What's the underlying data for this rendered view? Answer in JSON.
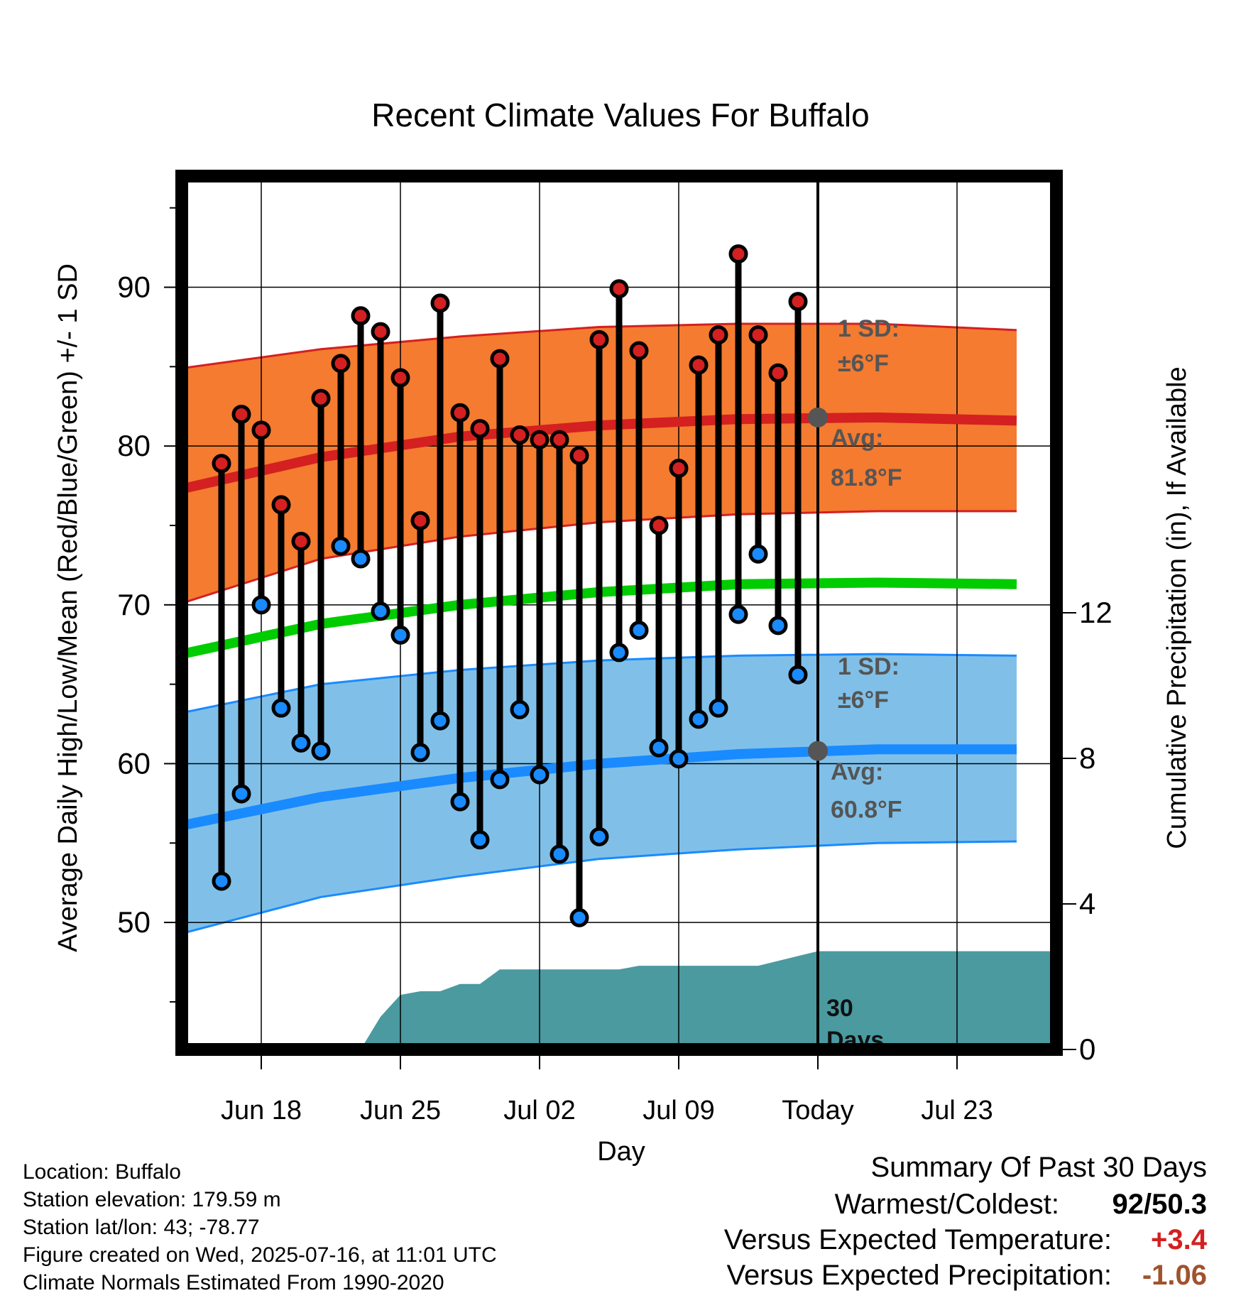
{
  "chart_data": {
    "type": "line",
    "title": "Recent Climate Values For Buffalo",
    "xlabel": "Day",
    "ylabel": "Average Daily High/Low/Mean (Red/Blue/Green) +/- 1 SD",
    "y2label": "Cumulative Precipitation (in), If Available",
    "xlim": [
      "2025-06-14",
      "2025-07-28"
    ],
    "ylim": [
      42,
      97
    ],
    "y2lim": [
      0,
      24
    ],
    "x_ticks": [
      {
        "date": "2025-06-18",
        "label": "Jun 18"
      },
      {
        "date": "2025-06-25",
        "label": "Jun 25"
      },
      {
        "date": "2025-07-02",
        "label": "Jul 02"
      },
      {
        "date": "2025-07-09",
        "label": "Jul 09"
      },
      {
        "date": "2025-07-16",
        "label": "Today"
      },
      {
        "date": "2025-07-23",
        "label": "Jul 23"
      }
    ],
    "y_ticks": [
      50,
      60,
      70,
      80,
      90
    ],
    "y2_ticks": [
      0,
      4,
      8,
      12
    ],
    "today": "2025-07-16",
    "observed": {
      "dates": [
        "2025-06-16",
        "2025-06-17",
        "2025-06-18",
        "2025-06-19",
        "2025-06-20",
        "2025-06-21",
        "2025-06-22",
        "2025-06-23",
        "2025-06-24",
        "2025-06-25",
        "2025-06-26",
        "2025-06-27",
        "2025-06-28",
        "2025-06-29",
        "2025-06-30",
        "2025-07-01",
        "2025-07-02",
        "2025-07-03",
        "2025-07-04",
        "2025-07-05",
        "2025-07-06",
        "2025-07-07",
        "2025-07-08",
        "2025-07-09",
        "2025-07-10",
        "2025-07-11",
        "2025-07-12",
        "2025-07-13",
        "2025-07-14",
        "2025-07-15"
      ],
      "highs": [
        78.9,
        82,
        81,
        76.3,
        74,
        83,
        85.2,
        88.2,
        87.2,
        84.3,
        75.3,
        89,
        82.1,
        81.1,
        85.5,
        80.7,
        80.4,
        80.4,
        79.4,
        86.7,
        89.9,
        86,
        75,
        78.6,
        85.1,
        87,
        92.1,
        87,
        84.6,
        89.1
      ],
      "lows": [
        52.6,
        58.1,
        70,
        63.5,
        61.3,
        60.8,
        73.7,
        72.9,
        69.6,
        68.1,
        60.7,
        62.7,
        57.6,
        55.2,
        59,
        63.4,
        59.3,
        54.3,
        50.3,
        55.4,
        67,
        68.4,
        61,
        60.3,
        62.8,
        63.5,
        69.4,
        73.2,
        68.7,
        65.6
      ]
    },
    "normals": {
      "dates": [
        "2025-06-14",
        "2025-06-21",
        "2025-06-28",
        "2025-07-05",
        "2025-07-12",
        "2025-07-19",
        "2025-07-26"
      ],
      "avg_high": [
        77.3,
        79.3,
        80.6,
        81.3,
        81.7,
        81.8,
        81.6
      ],
      "high_upper": [
        84.9,
        86.1,
        86.9,
        87.5,
        87.7,
        87.7,
        87.3
      ],
      "high_lower": [
        70.1,
        72.9,
        74.3,
        75.2,
        75.7,
        75.9,
        75.9
      ],
      "avg_mean": [
        66.9,
        68.8,
        70.0,
        70.8,
        71.3,
        71.4,
        71.3
      ],
      "avg_low": [
        56.1,
        57.9,
        59.1,
        60.0,
        60.6,
        60.9,
        60.9
      ],
      "low_upper": [
        63.2,
        65.0,
        65.9,
        66.5,
        66.8,
        66.9,
        66.8
      ],
      "low_lower": [
        49.3,
        51.6,
        52.9,
        54.0,
        54.6,
        55.0,
        55.1
      ]
    },
    "precip_cumulative": {
      "dates": [
        "2025-06-23",
        "2025-06-24",
        "2025-06-25",
        "2025-06-26",
        "2025-06-27",
        "2025-06-28",
        "2025-06-29",
        "2025-06-30",
        "2025-07-01",
        "2025-07-06",
        "2025-07-07",
        "2025-07-13",
        "2025-07-16",
        "2025-07-28"
      ],
      "values": [
        0,
        0.9,
        1.5,
        1.6,
        1.6,
        1.8,
        1.8,
        2.2,
        2.2,
        2.2,
        2.3,
        2.3,
        2.7,
        2.7
      ]
    },
    "annotations": {
      "high_sd": {
        "line1": "1 SD:",
        "line2": "±6°F"
      },
      "high_avg": {
        "line1": "Avg:",
        "line2": "81.8°F",
        "value": 81.8
      },
      "low_sd": {
        "line1": "1 SD:",
        "line2": "±6°F"
      },
      "low_avg": {
        "line1": "Avg:",
        "line2": "60.8°F",
        "value": 60.8
      },
      "precip_period": {
        "line1": "30",
        "line2": "Days"
      }
    },
    "colors": {
      "high_band": "#f47b30",
      "high_line": "#d42020",
      "high_dot": "#d42020",
      "mean_line": "#00cc00",
      "low_band": "#80c0e8",
      "low_line": "#1a8aff",
      "low_dot": "#1a8aff",
      "precip": "#4a9aa0",
      "annotation": "#555555"
    }
  },
  "info": {
    "location": "Location: Buffalo",
    "elevation": "Station elevation: 179.59 m",
    "latlon": "Station lat/lon: 43; -78.77",
    "created": "Figure created on Wed, 2025-07-16, at 11:01 UTC",
    "normals": "Climate Normals Estimated From 1990-2020"
  },
  "summary": {
    "title": "Summary Of Past 30 Days",
    "warmest_label": "Warmest/Coldest:",
    "warmest_value": "92/50.3",
    "temp_label": "Versus Expected Temperature:",
    "temp_value": "+3.4",
    "temp_color": "#d42020",
    "precip_label": "Versus Expected Precipitation:",
    "precip_value": "-1.06",
    "precip_color": "#a0522d"
  }
}
